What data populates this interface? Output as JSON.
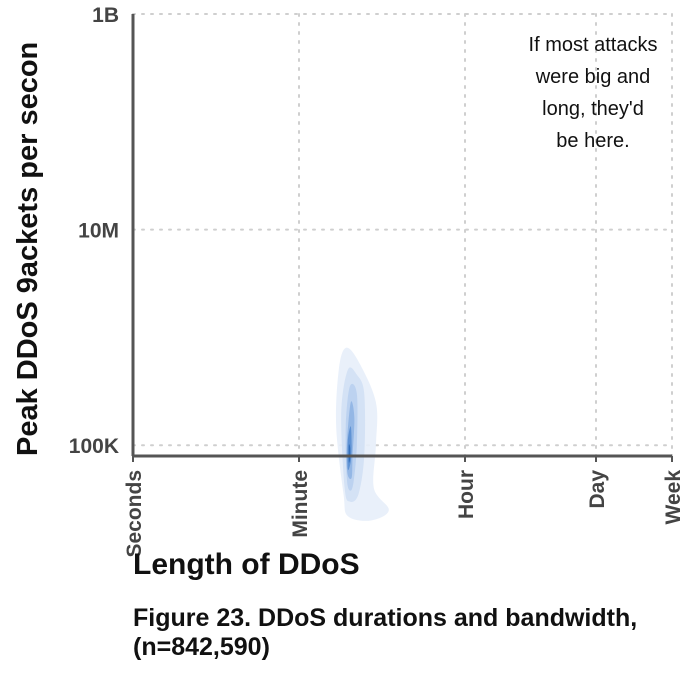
{
  "chart_data": {
    "type": "density",
    "ylabel": "Peak DDoS 9ackets per secon",
    "xlabel": "Length of DDoS",
    "caption": "Figure 23.  DDoS durations and bandwidth, (n=842,590)",
    "annotation": [
      "If most attacks",
      "were big and",
      "long, they'd",
      "be here."
    ],
    "y_scale": "log",
    "y_ticks": [
      {
        "label": "1B",
        "value": 1000000000
      },
      {
        "label": "10M",
        "value": 10000000
      },
      {
        "label": "100K",
        "value": 100000
      }
    ],
    "x_ticks": [
      {
        "label": "Seconds",
        "seconds": 1
      },
      {
        "label": "Minute",
        "seconds": 60
      },
      {
        "label": "Hour",
        "seconds": 3600
      },
      {
        "label": "Day",
        "seconds": 86400
      },
      {
        "label": "Week",
        "seconds": 604800
      }
    ],
    "grid": true,
    "density_levels": [
      {
        "level": 1,
        "color": "#e7eef9",
        "points": [
          [
            180,
            35000
          ],
          [
            150,
            150000
          ],
          [
            160,
            500000
          ],
          [
            190,
            800000
          ],
          [
            260,
            600000
          ],
          [
            400,
            250000
          ],
          [
            400,
            100000
          ],
          [
            380,
            40000
          ],
          [
            550,
            25000
          ],
          [
            350,
            20000
          ],
          [
            200,
            22000
          ]
        ]
      },
      {
        "level": 2,
        "color": "#d2e0f4",
        "points": [
          [
            185,
            40000
          ],
          [
            170,
            200000
          ],
          [
            200,
            500000
          ],
          [
            250,
            450000
          ],
          [
            300,
            300000
          ],
          [
            300,
            80000
          ],
          [
            260,
            35000
          ],
          [
            210,
            30000
          ]
        ]
      },
      {
        "level": 3,
        "color": "#b9d0ef",
        "points": [
          [
            195,
            50000
          ],
          [
            190,
            150000
          ],
          [
            210,
            350000
          ],
          [
            250,
            300000
          ],
          [
            250,
            100000
          ],
          [
            230,
            45000
          ],
          [
            210,
            38000
          ]
        ]
      },
      {
        "level": 4,
        "color": "#8fb4e3",
        "points": [
          [
            198,
            55000
          ],
          [
            195,
            100000
          ],
          [
            215,
            250000
          ],
          [
            235,
            180000
          ],
          [
            225,
            80000
          ],
          [
            220,
            50000
          ]
        ]
      },
      {
        "level": 5,
        "color": "#5a8fd1",
        "points": [
          [
            200,
            60000
          ],
          [
            200,
            110000
          ],
          [
            215,
            150000
          ],
          [
            220,
            100000
          ],
          [
            215,
            70000
          ]
        ]
      },
      {
        "level": 6,
        "color": "#2d6cb9",
        "points": [
          [
            205,
            70000
          ],
          [
            205,
            100000
          ],
          [
            212,
            95000
          ],
          [
            212,
            75000
          ]
        ]
      }
    ]
  }
}
